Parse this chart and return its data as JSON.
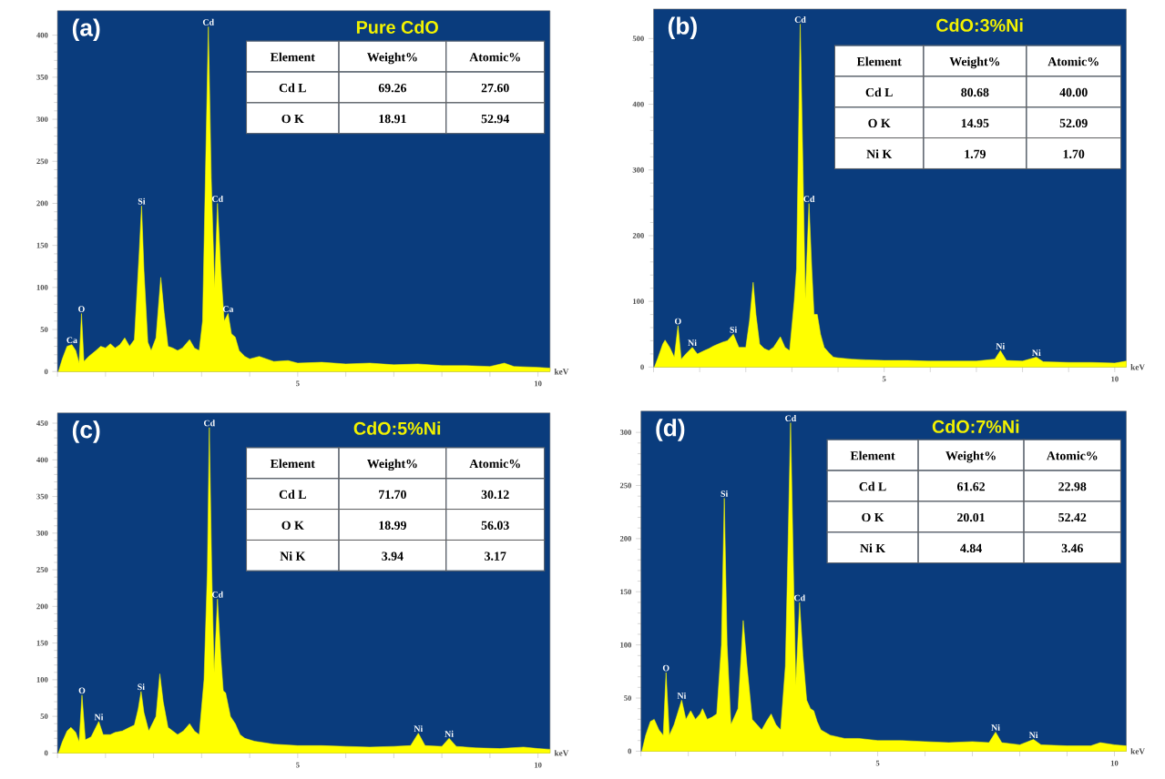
{
  "chart_data": [
    {
      "type": "area",
      "title": "Pure CdO",
      "xlabel": "keV",
      "color": "#ffff00",
      "x": [
        0.02,
        0.1,
        0.2,
        0.3,
        0.38,
        0.45,
        0.5,
        0.55,
        0.65,
        0.8,
        0.9,
        1.0,
        1.1,
        1.2,
        1.3,
        1.4,
        1.5,
        1.6,
        1.7,
        1.75,
        1.8,
        1.88,
        1.95,
        2.05,
        2.15,
        2.22,
        2.3,
        2.4,
        2.5,
        2.6,
        2.75,
        2.85,
        2.95,
        3.02,
        3.08,
        3.14,
        3.2,
        3.27,
        3.33,
        3.4,
        3.47,
        3.55,
        3.62,
        3.7,
        3.78,
        3.9,
        4.0,
        4.2,
        4.5,
        4.8,
        5.0,
        5.5,
        6.0,
        6.5,
        7.0,
        7.5,
        8.0,
        8.5,
        9.0,
        9.3,
        9.5,
        10.0,
        10.25
      ],
      "values": [
        0,
        15,
        30,
        32,
        25,
        10,
        69,
        12,
        18,
        25,
        30,
        28,
        33,
        28,
        32,
        40,
        30,
        38,
        140,
        197,
        120,
        35,
        25,
        40,
        112,
        70,
        30,
        28,
        25,
        28,
        38,
        28,
        25,
        60,
        236,
        410,
        230,
        99,
        200,
        120,
        60,
        69,
        45,
        41,
        25,
        18,
        15,
        18,
        12,
        13,
        10,
        11,
        9,
        10,
        8,
        9,
        7,
        7,
        6,
        10,
        6,
        5,
        4
      ],
      "xlim": [
        0,
        10.25
      ],
      "ylim": [
        0,
        429
      ],
      "xticks": [
        {
          "value": 0,
          "label": null
        },
        {
          "value": 1,
          "label": null
        },
        {
          "value": 2,
          "label": null
        },
        {
          "value": 3,
          "label": null
        },
        {
          "value": 4,
          "label": null
        },
        5,
        {
          "value": 6,
          "label": null
        },
        {
          "value": 7,
          "label": null
        },
        {
          "value": 8,
          "label": null
        },
        {
          "value": 9,
          "label": null
        },
        10
      ],
      "yticks": [
        0,
        50,
        100,
        150,
        200,
        250,
        300,
        350,
        400
      ],
      "annotations": [
        "(a)",
        "Element",
        "Weight%",
        "Atomic%",
        "Cd L",
        "69.26",
        "27.60",
        "O K",
        "18.91",
        "52.94",
        {
          "text": "Ca",
          "x": 0.3,
          "y": 32
        },
        {
          "text": "O",
          "x": 0.5,
          "y": 69
        },
        {
          "text": "Si",
          "x": 1.75,
          "y": 197
        },
        {
          "text": "Cd",
          "x": 3.14,
          "y": 410
        },
        {
          "text": "Cd",
          "x": 3.33,
          "y": 200
        },
        {
          "text": "Ca",
          "x": 3.55,
          "y": 69
        }
      ]
    },
    {
      "type": "area",
      "title": "CdO:3%Ni",
      "xlabel": "keV",
      "color": "#ffff00",
      "x": [
        0.02,
        0.1,
        0.2,
        0.25,
        0.35,
        0.45,
        0.53,
        0.6,
        0.7,
        0.84,
        0.95,
        1.1,
        1.2,
        1.3,
        1.4,
        1.5,
        1.6,
        1.73,
        1.85,
        2.0,
        2.08,
        2.16,
        2.22,
        2.3,
        2.4,
        2.5,
        2.6,
        2.75,
        2.85,
        2.95,
        3.05,
        3.1,
        3.18,
        3.24,
        3.29,
        3.37,
        3.43,
        3.48,
        3.55,
        3.62,
        3.7,
        3.8,
        3.9,
        4.0,
        4.3,
        4.6,
        5.0,
        5.5,
        6.0,
        6.5,
        7.0,
        7.4,
        7.52,
        7.65,
        8.0,
        8.3,
        8.45,
        9.0,
        9.5,
        10.0,
        10.25
      ],
      "values": [
        0,
        15,
        35,
        41,
        30,
        15,
        63,
        12,
        20,
        30,
        20,
        25,
        28,
        32,
        35,
        38,
        40,
        50,
        30,
        30,
        70,
        129,
        80,
        35,
        28,
        25,
        30,
        46,
        30,
        25,
        100,
        150,
        522,
        300,
        104,
        249,
        150,
        80,
        80,
        50,
        30,
        22,
        15,
        14,
        12,
        11,
        10,
        10,
        9,
        9,
        9,
        12,
        25,
        10,
        9,
        15,
        8,
        7,
        7,
        6,
        9
      ],
      "xlim": [
        0,
        10.25
      ],
      "ylim": [
        0,
        545
      ],
      "xticks": [
        {
          "value": 0,
          "label": null
        },
        {
          "value": 1,
          "label": null
        },
        {
          "value": 2,
          "label": null
        },
        {
          "value": 3,
          "label": null
        },
        {
          "value": 4,
          "label": null
        },
        5,
        {
          "value": 6,
          "label": null
        },
        {
          "value": 7,
          "label": null
        },
        {
          "value": 8,
          "label": null
        },
        {
          "value": 9,
          "label": null
        },
        10
      ],
      "yticks": [
        0,
        100,
        200,
        300,
        400,
        500
      ],
      "annotations": [
        "(b)",
        "Element",
        "Weight%",
        "Atomic%",
        "Cd L",
        "80.68",
        "40.00",
        "O K",
        "14.95",
        "52.09",
        "Ni K",
        "1.79",
        "1.70",
        {
          "text": "O",
          "x": 0.53,
          "y": 63
        },
        {
          "text": "Ni",
          "x": 0.84,
          "y": 30
        },
        {
          "text": "Si",
          "x": 1.73,
          "y": 50
        },
        {
          "text": "Cd",
          "x": 3.18,
          "y": 522
        },
        {
          "text": "Cd",
          "x": 3.37,
          "y": 249
        },
        {
          "text": "Ni",
          "x": 7.52,
          "y": 25
        },
        {
          "text": "Ni",
          "x": 8.3,
          "y": 15
        }
      ]
    },
    {
      "type": "area",
      "title": "CdO:5%Ni",
      "xlabel": "keV",
      "color": "#ffff00",
      "x": [
        0.02,
        0.1,
        0.2,
        0.28,
        0.38,
        0.45,
        0.51,
        0.58,
        0.7,
        0.86,
        0.95,
        1.1,
        1.2,
        1.35,
        1.5,
        1.6,
        1.68,
        1.74,
        1.8,
        1.9,
        2.05,
        2.13,
        2.2,
        2.3,
        2.4,
        2.5,
        2.62,
        2.75,
        2.85,
        2.95,
        3.05,
        3.12,
        3.16,
        3.21,
        3.26,
        3.33,
        3.4,
        3.45,
        3.5,
        3.6,
        3.7,
        3.8,
        3.9,
        4.1,
        4.5,
        5.0,
        5.5,
        6.0,
        6.5,
        7.0,
        7.35,
        7.51,
        7.65,
        8.0,
        8.15,
        8.3,
        8.7,
        9.2,
        9.7,
        10.0,
        10.25
      ],
      "values": [
        0,
        15,
        30,
        35,
        28,
        15,
        79,
        18,
        22,
        43,
        25,
        25,
        28,
        30,
        35,
        38,
        60,
        84,
        55,
        30,
        50,
        108,
        70,
        35,
        30,
        25,
        30,
        40,
        30,
        25,
        100,
        250,
        444,
        250,
        110,
        210,
        130,
        85,
        82,
        50,
        40,
        25,
        20,
        16,
        12,
        10,
        10,
        9,
        8,
        9,
        10,
        27,
        10,
        9,
        20,
        9,
        7,
        6,
        8,
        6,
        5
      ],
      "xlim": [
        0,
        10.25
      ],
      "ylim": [
        0,
        464
      ],
      "xticks": [
        {
          "value": 0,
          "label": null
        },
        {
          "value": 1,
          "label": null
        },
        {
          "value": 2,
          "label": null
        },
        {
          "value": 3,
          "label": null
        },
        {
          "value": 4,
          "label": null
        },
        5,
        {
          "value": 6,
          "label": null
        },
        {
          "value": 7,
          "label": null
        },
        {
          "value": 8,
          "label": null
        },
        {
          "value": 9,
          "label": null
        },
        10
      ],
      "yticks": [
        0,
        50,
        100,
        150,
        200,
        250,
        300,
        350,
        400,
        450
      ],
      "annotations": [
        "(c)",
        "Element",
        "Weight%",
        "Atomic%",
        "Cd L",
        "71.70",
        "30.12",
        "O K",
        "18.99",
        "56.03",
        "Ni K",
        "3.94",
        "3.17",
        {
          "text": "O",
          "x": 0.51,
          "y": 79
        },
        {
          "text": "Ni",
          "x": 0.86,
          "y": 43
        },
        {
          "text": "Si",
          "x": 1.74,
          "y": 84
        },
        {
          "text": "Cd",
          "x": 3.16,
          "y": 444
        },
        {
          "text": "Cd",
          "x": 3.33,
          "y": 210
        },
        {
          "text": "Ni",
          "x": 7.51,
          "y": 27
        },
        {
          "text": "Ni",
          "x": 8.15,
          "y": 20
        }
      ]
    },
    {
      "type": "area",
      "title": "CdO:7%Ni",
      "xlabel": "keV",
      "color": "#ffff00",
      "x": [
        0.02,
        0.1,
        0.2,
        0.28,
        0.38,
        0.47,
        0.53,
        0.6,
        0.7,
        0.86,
        0.95,
        1.05,
        1.15,
        1.25,
        1.3,
        1.4,
        1.5,
        1.6,
        1.7,
        1.76,
        1.82,
        1.9,
        2.05,
        2.16,
        2.24,
        2.35,
        2.45,
        2.55,
        2.65,
        2.75,
        2.85,
        2.95,
        3.05,
        3.1,
        3.16,
        3.22,
        3.27,
        3.35,
        3.42,
        3.5,
        3.58,
        3.65,
        3.72,
        3.8,
        4.0,
        4.3,
        4.6,
        5.0,
        5.5,
        6.0,
        6.5,
        7.0,
        7.35,
        7.49,
        7.62,
        8.0,
        8.29,
        8.45,
        9.0,
        9.5,
        9.7,
        10.0,
        10.25
      ],
      "values": [
        0,
        15,
        28,
        30,
        20,
        15,
        74,
        15,
        25,
        48,
        30,
        38,
        30,
        35,
        40,
        30,
        32,
        35,
        100,
        238,
        100,
        25,
        40,
        123,
        80,
        30,
        25,
        20,
        28,
        35,
        25,
        20,
        80,
        180,
        309,
        170,
        62,
        140,
        90,
        48,
        40,
        38,
        28,
        20,
        15,
        12,
        12,
        10,
        10,
        9,
        8,
        9,
        8,
        18,
        8,
        6,
        11,
        6,
        5,
        5,
        8,
        6,
        5
      ],
      "xlim": [
        0,
        10.25
      ],
      "ylim": [
        0,
        320
      ],
      "xticks": [
        {
          "value": 0,
          "label": null
        },
        {
          "value": 1,
          "label": null
        },
        {
          "value": 2,
          "label": null
        },
        {
          "value": 3,
          "label": null
        },
        {
          "value": 4,
          "label": null
        },
        5,
        {
          "value": 6,
          "label": null
        },
        {
          "value": 7,
          "label": null
        },
        {
          "value": 8,
          "label": null
        },
        {
          "value": 9,
          "label": null
        },
        10
      ],
      "yticks": [
        0,
        50,
        100,
        150,
        200,
        250,
        300
      ],
      "annotations": [
        "(d)",
        "Element",
        "Weight%",
        "Atomic%",
        "Cd L",
        "61.62",
        "22.98",
        "O K",
        "20.01",
        "52.42",
        "Ni K",
        "4.84",
        "3.46",
        {
          "text": "O",
          "x": 0.53,
          "y": 74
        },
        {
          "text": "Ni",
          "x": 0.86,
          "y": 48
        },
        {
          "text": "Si",
          "x": 1.76,
          "y": 238
        },
        {
          "text": "Cd",
          "x": 3.16,
          "y": 309
        },
        {
          "text": "Cd",
          "x": 3.35,
          "y": 140
        },
        {
          "text": "Ni",
          "x": 7.49,
          "y": 18
        },
        {
          "text": "Ni",
          "x": 8.29,
          "y": 11
        }
      ]
    }
  ]
}
